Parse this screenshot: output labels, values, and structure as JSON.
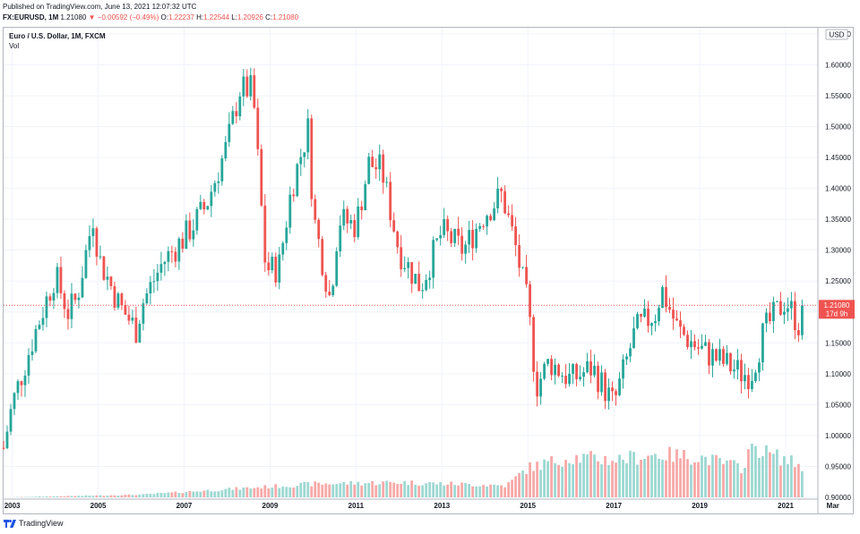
{
  "header": {
    "published": "Published on TradingView.com, June 13, 2021 12:07:32 UTC",
    "symbol": "FX:EURUSD, 1M",
    "last": "1.21080",
    "change_arrow": "▼",
    "change": "−0.00592 (−0.49%)",
    "o_label": "O:",
    "o_val": "1.22237",
    "h_label": "H:",
    "h_val": "1.22544",
    "l_label": "L:",
    "l_val": "1.20926",
    "c_label": "C:",
    "c_val": "1.21080"
  },
  "legend": {
    "title": "Euro / U.S. Dollar, 1M, FXCM",
    "sub": "Vol"
  },
  "footer": {
    "brand": "TradingView"
  },
  "chart_data": {
    "type": "candlestick",
    "currency": "USD",
    "x_tick_labels": [
      "2003",
      "2005",
      "2007",
      "2009",
      "2011",
      "2013",
      "2015",
      "2017",
      "2019",
      "2021",
      "Mar"
    ],
    "y_tick_labels": [
      "1.65000",
      "1.60000",
      "1.55000",
      "1.50000",
      "1.45000",
      "1.40000",
      "1.35000",
      "1.30000",
      "1.25000",
      "1.20000",
      "1.15000",
      "1.10000",
      "1.05000",
      "1.00000",
      "0.95000",
      "0.90000"
    ],
    "ylim": [
      0.9,
      1.66
    ],
    "last_price_label": "1.21080",
    "countdown_label": "17d 9h",
    "last_price": 1.2108,
    "colors": {
      "up": "#26a69a",
      "down": "#ef5350",
      "vol_up": "#9dd8d2",
      "vol_down": "#f7a9a7",
      "grid": "#f0f3fa"
    },
    "annual_anchors": {
      "years": [
        2002.8,
        2003.0,
        2003.5,
        2004.0,
        2004.3,
        2004.5,
        2004.9,
        2005.0,
        2005.5,
        2005.9,
        2006.0,
        2006.5,
        2007.0,
        2007.5,
        2008.0,
        2008.3,
        2008.6,
        2008.9,
        2009.2,
        2009.5,
        2009.9,
        2010.0,
        2010.4,
        2010.6,
        2011.0,
        2011.3,
        2011.6,
        2012.0,
        2012.5,
        2013.0,
        2013.5,
        2014.0,
        2014.4,
        2014.7,
        2015.0,
        2015.2,
        2015.5,
        2016.0,
        2016.5,
        2017.0,
        2017.5,
        2018.0,
        2018.1,
        2018.5,
        2019.0,
        2019.5,
        2020.0,
        2020.2,
        2020.5,
        2021.0,
        2021.3,
        2021.5
      ],
      "closes": [
        0.98,
        1.05,
        1.16,
        1.26,
        1.2,
        1.22,
        1.36,
        1.29,
        1.21,
        1.17,
        1.21,
        1.28,
        1.32,
        1.37,
        1.47,
        1.56,
        1.56,
        1.27,
        1.27,
        1.4,
        1.5,
        1.36,
        1.22,
        1.35,
        1.34,
        1.44,
        1.43,
        1.3,
        1.24,
        1.33,
        1.3,
        1.36,
        1.39,
        1.31,
        1.21,
        1.08,
        1.12,
        1.09,
        1.11,
        1.05,
        1.17,
        1.2,
        1.24,
        1.17,
        1.14,
        1.12,
        1.1,
        1.1,
        1.17,
        1.22,
        1.18,
        1.2108
      ]
    },
    "volume_annual_anchors": {
      "years": [
        2002.8,
        2006.0,
        2008.0,
        2010.0,
        2012.0,
        2014.5,
        2015.0,
        2016.0,
        2017.0,
        2018.0,
        2019.0,
        2020.0,
        2020.2,
        2020.5,
        2021.0,
        2021.5
      ],
      "heights": [
        0.0,
        0.05,
        0.15,
        0.25,
        0.28,
        0.22,
        0.55,
        0.75,
        0.7,
        0.8,
        0.75,
        0.55,
        1.0,
        0.85,
        0.7,
        0.55
      ]
    }
  }
}
